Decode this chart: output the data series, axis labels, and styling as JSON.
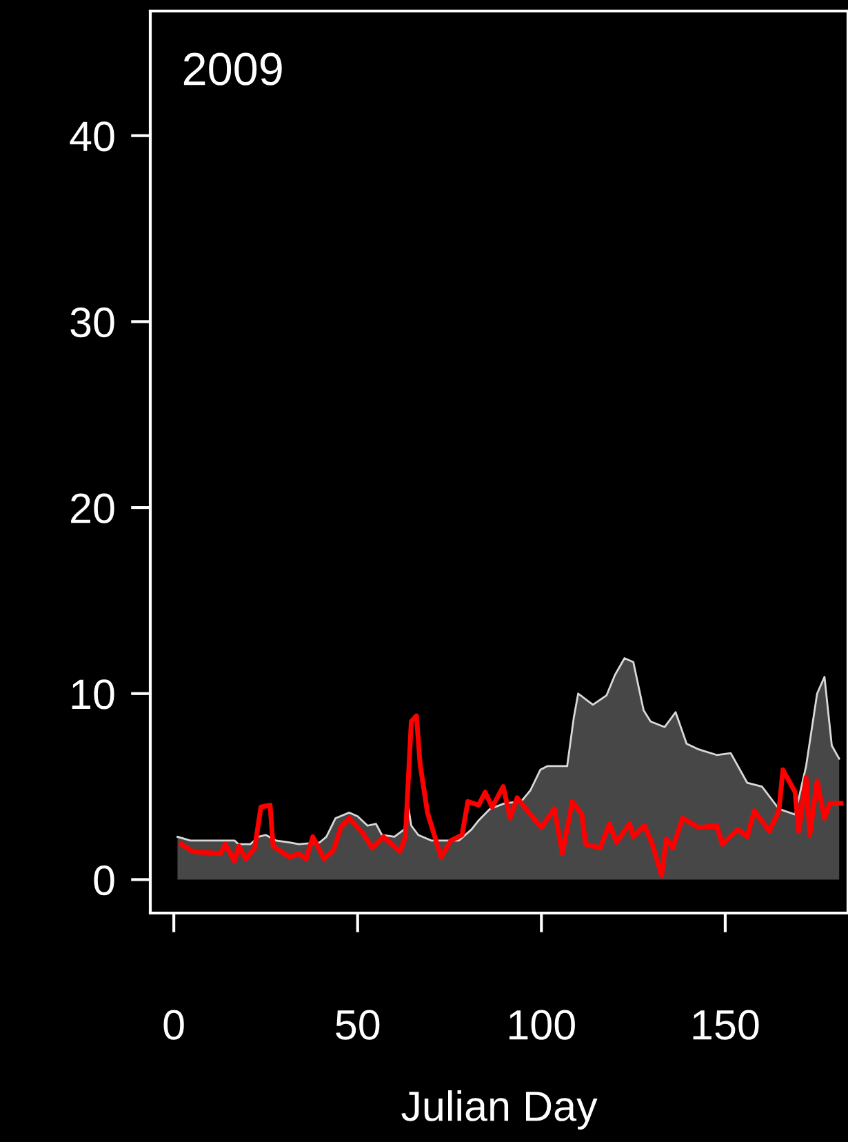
{
  "chart_data": {
    "type": "line",
    "xlabel": "Julian Day",
    "annotations": [
      "2009"
    ],
    "xlim": [
      -6.4,
      183.4
    ],
    "ylim": [
      -1.8,
      46.7
    ],
    "xticks": [
      0,
      50,
      100,
      150
    ],
    "yticks": [
      0,
      10,
      20,
      30,
      40
    ],
    "grid": false,
    "series": [
      {
        "type": "area",
        "color": "#474747",
        "x": [
          1,
          4.5,
          16.5,
          17.6,
          20.8,
          23,
          25,
          27.8,
          31.5,
          34,
          39.7,
          41.5,
          44,
          47.7,
          50,
          52.7,
          55,
          56.6,
          60,
          62.7,
          63.7,
          64.6,
          66.5,
          70,
          77.6,
          81,
          83,
          86,
          90,
          94.5,
          97,
          99.7,
          101.6,
          107,
          108.8,
          110,
          114,
          117.7,
          120,
          122.6,
          125,
          127.8,
          129.7,
          133.5,
          136.5,
          139.5,
          142.8,
          147.7,
          151.5,
          156,
          160,
          164.6,
          169,
          172,
          175,
          177,
          179,
          181
        ],
        "values": [
          2.3,
          2.1,
          2.1,
          1.9,
          1.9,
          2.3,
          2.4,
          2.1,
          2.0,
          1.9,
          2.0,
          2.3,
          3.3,
          3.6,
          3.4,
          2.9,
          3.0,
          2.4,
          2.3,
          2.7,
          4.0,
          2.9,
          2.4,
          2.1,
          2.1,
          2.7,
          3.2,
          3.8,
          4.1,
          4.2,
          4.8,
          5.9,
          6.1,
          6.1,
          8.7,
          10.0,
          9.4,
          9.9,
          11.0,
          11.9,
          11.7,
          9.1,
          8.5,
          8.2,
          9.0,
          7.3,
          7.0,
          6.7,
          6.8,
          5.2,
          5.0,
          3.8,
          3.5,
          6.1,
          10.0,
          10.9,
          7.2,
          6.5
        ]
      },
      {
        "color": "#ff0000",
        "x": [
          2,
          5.3,
          12.7,
          14,
          16.5,
          17.7,
          19.6,
          22,
          23.7,
          26.2,
          27,
          31.5,
          34,
          36,
          37.8,
          40.9,
          43.5,
          45.4,
          47.7,
          51.4,
          54,
          57,
          61.5,
          63,
          64.6,
          66,
          67,
          69,
          72.7,
          75.4,
          78.4,
          80,
          82.9,
          84.7,
          86.6,
          89.6,
          91.5,
          93.4,
          97,
          100,
          103.5,
          105.7,
          108.4,
          111,
          112,
          116,
          118.5,
          120.4,
          124,
          125,
          128,
          130,
          132.7,
          134,
          135.7,
          138.4,
          142.8,
          147.7,
          149.2,
          153.4,
          156,
          157.9,
          162,
          164.6,
          165.7,
          169,
          170,
          172,
          173,
          175,
          177,
          178.5,
          181.5
        ],
        "values": [
          1.9,
          1.5,
          1.4,
          1.9,
          1.0,
          1.8,
          1.1,
          1.7,
          3.9,
          4.0,
          1.8,
          1.2,
          1.4,
          1.1,
          2.3,
          1.1,
          1.6,
          2.8,
          3.3,
          2.5,
          1.7,
          2.3,
          1.5,
          2.3,
          8.5,
          8.8,
          6.2,
          3.6,
          1.2,
          2.1,
          2.4,
          4.2,
          4.0,
          4.7,
          3.9,
          5.0,
          3.3,
          4.4,
          3.5,
          2.8,
          3.8,
          1.4,
          4.2,
          3.5,
          1.9,
          1.7,
          3.0,
          2.0,
          3.0,
          2.3,
          2.9,
          2.0,
          0.2,
          2.2,
          1.7,
          3.3,
          2.8,
          2.9,
          1.9,
          2.7,
          2.3,
          3.7,
          2.6,
          3.7,
          5.9,
          4.7,
          2.6,
          5.5,
          2.4,
          5.3,
          3.3,
          4.1,
          4.1
        ]
      }
    ]
  }
}
